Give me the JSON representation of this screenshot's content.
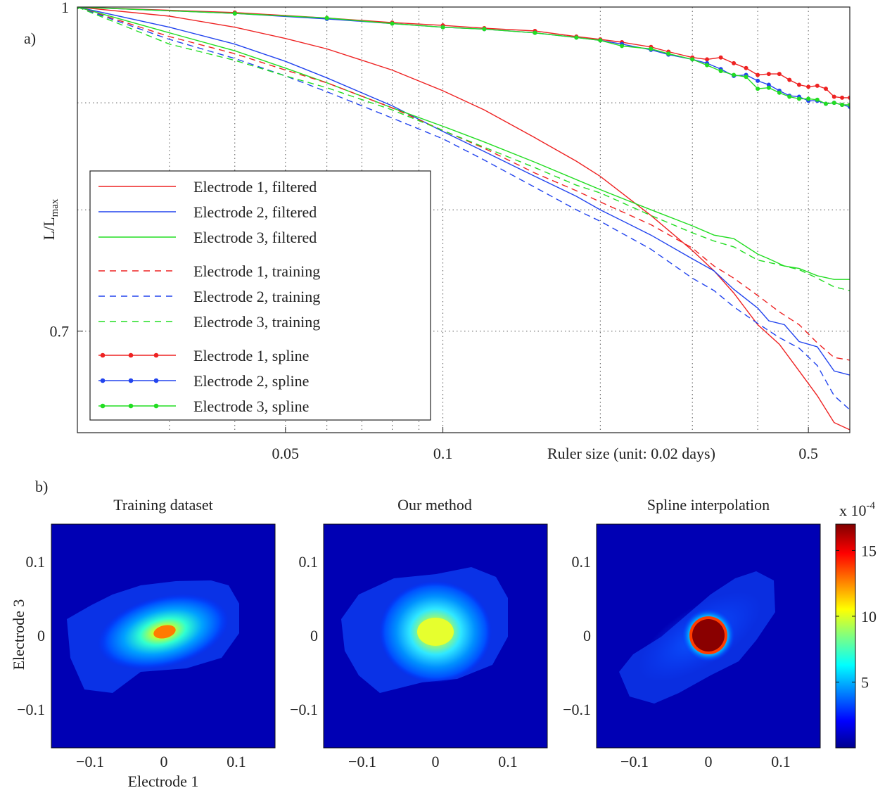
{
  "panel_labels": {
    "a": "a)",
    "b": "b)"
  },
  "chart_data": [
    {
      "type": "line",
      "panel": "a)",
      "ylabel": "L/L",
      "ylabel_sub": "max",
      "xlabel": "Ruler size (unit: 0.02 days)",
      "xscale": "log",
      "yscale": "log",
      "xlim": [
        0.02,
        0.6
      ],
      "ylim": [
        0.626,
        1.0
      ],
      "xticks": [
        0.05,
        0.1,
        0.5
      ],
      "xtick_labels": [
        "0.05",
        "0.1",
        "0.5"
      ],
      "xgrid": [
        0.03,
        0.04,
        0.05,
        0.06,
        0.07,
        0.08,
        0.09,
        0.1,
        0.2,
        0.3,
        0.4,
        0.5
      ],
      "yticks": [
        1,
        0.7
      ],
      "ytick_labels": [
        "1",
        "0.7"
      ],
      "ygrid": [
        0.9,
        0.8,
        0.7
      ],
      "grid": true,
      "legend_position": "lower-left",
      "series": [
        {
          "name": "Electrode 1, filtered",
          "color": "#ee2222",
          "style": "solid",
          "marker": false,
          "x": [
            0.02,
            0.03,
            0.04,
            0.05,
            0.06,
            0.08,
            0.1,
            0.12,
            0.15,
            0.18,
            0.2,
            0.25,
            0.3,
            0.33,
            0.36,
            0.4,
            0.44,
            0.48,
            0.52,
            0.56,
            0.6
          ],
          "y": [
            1.0,
            0.99,
            0.978,
            0.966,
            0.955,
            0.933,
            0.912,
            0.893,
            0.866,
            0.844,
            0.83,
            0.795,
            0.765,
            0.748,
            0.73,
            0.705,
            0.69,
            0.67,
            0.652,
            0.633,
            0.628
          ]
        },
        {
          "name": "Electrode 2, filtered",
          "color": "#2244ee",
          "style": "solid",
          "marker": false,
          "x": [
            0.02,
            0.03,
            0.04,
            0.05,
            0.06,
            0.08,
            0.1,
            0.12,
            0.15,
            0.18,
            0.2,
            0.25,
            0.3,
            0.33,
            0.36,
            0.4,
            0.42,
            0.45,
            0.48,
            0.52,
            0.56,
            0.6
          ],
          "y": [
            1.0,
            0.978,
            0.96,
            0.942,
            0.925,
            0.897,
            0.872,
            0.853,
            0.83,
            0.812,
            0.8,
            0.778,
            0.758,
            0.748,
            0.733,
            0.718,
            0.708,
            0.705,
            0.692,
            0.688,
            0.67,
            0.667
          ]
        },
        {
          "name": "Electrode 3, filtered",
          "color": "#22dd22",
          "style": "solid",
          "marker": false,
          "x": [
            0.02,
            0.03,
            0.04,
            0.05,
            0.06,
            0.08,
            0.1,
            0.12,
            0.15,
            0.18,
            0.2,
            0.25,
            0.3,
            0.33,
            0.36,
            0.4,
            0.42,
            0.45,
            0.48,
            0.52,
            0.56,
            0.6
          ],
          "y": [
            1.0,
            0.972,
            0.953,
            0.935,
            0.92,
            0.895,
            0.877,
            0.862,
            0.843,
            0.827,
            0.818,
            0.8,
            0.786,
            0.778,
            0.775,
            0.762,
            0.758,
            0.752,
            0.75,
            0.744,
            0.741,
            0.741
          ]
        },
        {
          "name": "Electrode 1, training",
          "color": "#ee2222",
          "style": "dashed",
          "marker": false,
          "x": [
            0.02,
            0.03,
            0.04,
            0.05,
            0.06,
            0.08,
            0.1,
            0.12,
            0.15,
            0.18,
            0.2,
            0.25,
            0.3,
            0.33,
            0.36,
            0.4,
            0.44,
            0.48,
            0.52,
            0.56,
            0.6
          ],
          "y": [
            1.0,
            0.968,
            0.95,
            0.933,
            0.92,
            0.895,
            0.873,
            0.856,
            0.833,
            0.817,
            0.807,
            0.787,
            0.767,
            0.752,
            0.742,
            0.728,
            0.715,
            0.705,
            0.691,
            0.68,
            0.678
          ]
        },
        {
          "name": "Electrode 2, training",
          "color": "#2244ee",
          "style": "dashed",
          "marker": false,
          "x": [
            0.02,
            0.03,
            0.04,
            0.05,
            0.06,
            0.08,
            0.1,
            0.12,
            0.15,
            0.18,
            0.2,
            0.25,
            0.3,
            0.33,
            0.36,
            0.4,
            0.44,
            0.48,
            0.52,
            0.56,
            0.6
          ],
          "y": [
            1.0,
            0.965,
            0.945,
            0.927,
            0.911,
            0.885,
            0.865,
            0.845,
            0.82,
            0.8,
            0.79,
            0.766,
            0.742,
            0.732,
            0.719,
            0.706,
            0.695,
            0.687,
            0.674,
            0.652,
            0.642
          ]
        },
        {
          "name": "Electrode 3, training",
          "color": "#22dd22",
          "style": "dashed",
          "marker": false,
          "x": [
            0.02,
            0.03,
            0.04,
            0.05,
            0.06,
            0.08,
            0.1,
            0.12,
            0.15,
            0.18,
            0.2,
            0.25,
            0.3,
            0.33,
            0.36,
            0.4,
            0.44,
            0.48,
            0.52,
            0.56,
            0.6
          ],
          "y": [
            1.0,
            0.96,
            0.943,
            0.927,
            0.915,
            0.893,
            0.873,
            0.857,
            0.838,
            0.822,
            0.815,
            0.795,
            0.78,
            0.773,
            0.768,
            0.757,
            0.753,
            0.749,
            0.742,
            0.735,
            0.732
          ]
        },
        {
          "name": "Electrode 1, spline",
          "color": "#ee2222",
          "style": "solid",
          "marker": true,
          "x": [
            0.02,
            0.04,
            0.06,
            0.08,
            0.1,
            0.12,
            0.15,
            0.18,
            0.2,
            0.22,
            0.25,
            0.27,
            0.3,
            0.32,
            0.34,
            0.36,
            0.38,
            0.4,
            0.42,
            0.44,
            0.46,
            0.48,
            0.5,
            0.52,
            0.54,
            0.56,
            0.58,
            0.6
          ],
          "y": [
            1.0,
            0.994,
            0.988,
            0.983,
            0.98,
            0.977,
            0.974,
            0.968,
            0.965,
            0.962,
            0.957,
            0.952,
            0.946,
            0.944,
            0.946,
            0.94,
            0.935,
            0.928,
            0.929,
            0.929,
            0.923,
            0.918,
            0.916,
            0.917,
            0.914,
            0.906,
            0.905,
            0.905
          ]
        },
        {
          "name": "Electrode 2, spline",
          "color": "#2244ee",
          "style": "solid",
          "marker": true,
          "x": [
            0.02,
            0.04,
            0.06,
            0.08,
            0.1,
            0.12,
            0.15,
            0.18,
            0.2,
            0.22,
            0.25,
            0.27,
            0.3,
            0.32,
            0.34,
            0.36,
            0.38,
            0.4,
            0.42,
            0.44,
            0.46,
            0.48,
            0.5,
            0.52,
            0.54,
            0.56,
            0.58,
            0.6
          ],
          "y": [
            1.0,
            0.993,
            0.987,
            0.982,
            0.978,
            0.976,
            0.972,
            0.967,
            0.964,
            0.96,
            0.954,
            0.949,
            0.944,
            0.94,
            0.934,
            0.927,
            0.928,
            0.922,
            0.918,
            0.912,
            0.907,
            0.906,
            0.902,
            0.902,
            0.899,
            0.9,
            0.898,
            0.896
          ]
        },
        {
          "name": "Electrode 3, spline",
          "color": "#22dd22",
          "style": "solid",
          "marker": true,
          "x": [
            0.02,
            0.04,
            0.06,
            0.08,
            0.1,
            0.12,
            0.15,
            0.18,
            0.2,
            0.22,
            0.25,
            0.27,
            0.3,
            0.32,
            0.34,
            0.36,
            0.38,
            0.4,
            0.42,
            0.44,
            0.46,
            0.48,
            0.5,
            0.52,
            0.54,
            0.56,
            0.58,
            0.6
          ],
          "y": [
            1.0,
            0.993,
            0.988,
            0.982,
            0.978,
            0.976,
            0.972,
            0.967,
            0.964,
            0.958,
            0.955,
            0.95,
            0.944,
            0.938,
            0.932,
            0.928,
            0.926,
            0.914,
            0.915,
            0.91,
            0.906,
            0.904,
            0.904,
            0.903,
            0.899,
            0.9,
            0.898,
            0.898
          ]
        }
      ]
    },
    {
      "type": "heatmap",
      "panel": "b)",
      "title": "Training dataset",
      "xlabel": "Electrode 1",
      "ylabel": "Electrode 3",
      "xlim": [
        -0.14,
        0.15
      ],
      "ylim": [
        -0.15,
        0.15
      ],
      "xtick_labels": [
        "−0.1",
        "0",
        "0.1"
      ],
      "ytick_labels": [
        "0.1",
        "0",
        "−0.1"
      ],
      "peak_value": 0.0011,
      "peak_center": [
        0.0,
        0.0
      ]
    },
    {
      "type": "heatmap",
      "panel": "b)",
      "title": "Our method",
      "xlim": [
        -0.14,
        0.15
      ],
      "ylim": [
        -0.15,
        0.15
      ],
      "xtick_labels": [
        "−0.1",
        "0",
        "0.1"
      ],
      "ytick_labels": [
        "0.1",
        "0",
        "−0.1"
      ],
      "peak_value": 0.001,
      "peak_center": [
        0.0,
        0.0
      ]
    },
    {
      "type": "heatmap",
      "panel": "b)",
      "title": "Spline interpolation",
      "xlim": [
        -0.14,
        0.15
      ],
      "ylim": [
        -0.15,
        0.15
      ],
      "xtick_labels": [
        "−0.1",
        "0",
        "0.1"
      ],
      "ytick_labels": [
        "0.1",
        "0",
        "−0.1"
      ],
      "peak_value": 0.0017,
      "peak_center": [
        0.0,
        0.0
      ]
    }
  ],
  "colorbar": {
    "multiplier_prefix": "x 10",
    "multiplier_exp": "-4",
    "ticks": [
      15,
      10,
      5
    ],
    "tick_labels": [
      "15",
      "10",
      "5"
    ],
    "range": [
      0,
      17
    ],
    "colormap": "jet"
  }
}
